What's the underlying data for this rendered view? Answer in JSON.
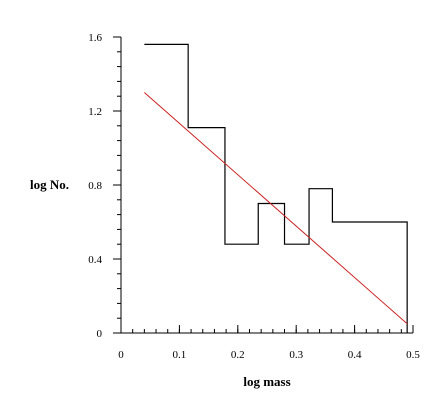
{
  "chart_data": {
    "type": "line",
    "xlabel": "log mass",
    "ylabel": "log No.",
    "xlim": [
      0,
      0.5
    ],
    "ylim": [
      0,
      1.6
    ],
    "x_ticks": [
      "0",
      "0.1",
      "0.2",
      "0.3",
      "0.4",
      "0.5"
    ],
    "y_ticks": [
      "0",
      "0.4",
      "0.8",
      "1.2",
      "1.6"
    ],
    "x_minor_step": 0.02,
    "y_minor_step": 0.08,
    "grid": false,
    "series": [
      {
        "style": "step",
        "color": "#000000",
        "bins": [
          {
            "x0": 0.04,
            "x1": 0.115,
            "y": 1.56
          },
          {
            "x0": 0.115,
            "x1": 0.178,
            "y": 1.11
          },
          {
            "x0": 0.178,
            "x1": 0.235,
            "y": 0.48
          },
          {
            "x0": 0.235,
            "x1": 0.28,
            "y": 0.7
          },
          {
            "x0": 0.28,
            "x1": 0.322,
            "y": 0.48
          },
          {
            "x0": 0.322,
            "x1": 0.362,
            "y": 0.78
          },
          {
            "x0": 0.362,
            "x1": 0.49,
            "y": 0.6
          }
        ]
      },
      {
        "style": "line",
        "color": "#cc2222",
        "x": [
          0.04,
          0.49
        ],
        "y": [
          1.3,
          0.05
        ]
      }
    ]
  }
}
